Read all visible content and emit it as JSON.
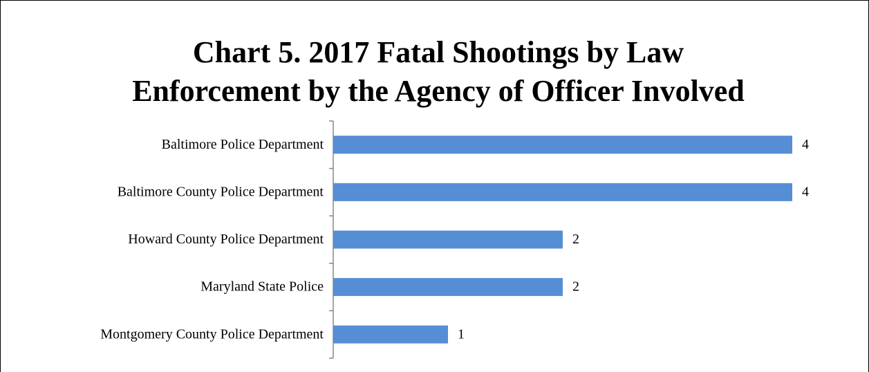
{
  "chart_data": {
    "type": "bar",
    "orientation": "horizontal",
    "title": [
      "Chart 5. 2017 Fatal Shootings by Law",
      "Enforcement by the Agency of Officer Involved"
    ],
    "categories": [
      "Baltimore Police Department",
      "Baltimore County Police Department",
      "Howard County Police Department",
      "Maryland State Police",
      "Montgomery County Police Department"
    ],
    "values": [
      4,
      4,
      2,
      2,
      1
    ],
    "color": "#558ed5",
    "xlim": [
      0,
      4
    ]
  }
}
